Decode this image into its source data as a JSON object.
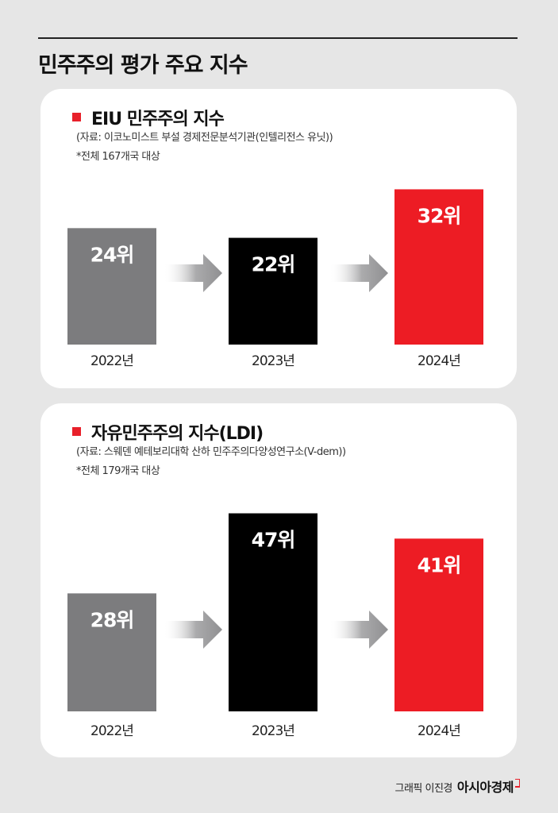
{
  "page": {
    "title": "민주주의 평가 주요 지수",
    "credit": "그래픽 이진경",
    "brand": "아시아경제"
  },
  "colors": {
    "background": "#e6e6e6",
    "panel": "#ffffff",
    "accent_red": "#e8202a",
    "bar_2022": "#7c7c7e",
    "bar_2023": "#000000",
    "bar_2024": "#ed1c24",
    "arrow": "#8f8f91"
  },
  "chart_data": [
    {
      "type": "bar",
      "title": "EIU 민주주의 지수",
      "source": "(자료: 이코노미스트 부설 경제전문분석기관(인텔리전스 유닛))",
      "note": "*전체 167개국 대상",
      "xlabel": "",
      "ylabel": "",
      "categories": [
        "2022년",
        "2023년",
        "2024년"
      ],
      "values": [
        24,
        22,
        32
      ],
      "value_labels": [
        "24위",
        "22위",
        "32위"
      ],
      "ylim": [
        0,
        36
      ]
    },
    {
      "type": "bar",
      "title": "자유민주주의 지수(LDI)",
      "source": "(자료: 스웨덴 예테보리대학 산하 민주주의다양성연구소(V-dem))",
      "note": "*전체 179개국 대상",
      "xlabel": "",
      "ylabel": "",
      "categories": [
        "2022년",
        "2023년",
        "2024년"
      ],
      "values": [
        28,
        47,
        41
      ],
      "value_labels": [
        "28위",
        "47위",
        "41위"
      ],
      "ylim": [
        0,
        52
      ]
    }
  ]
}
